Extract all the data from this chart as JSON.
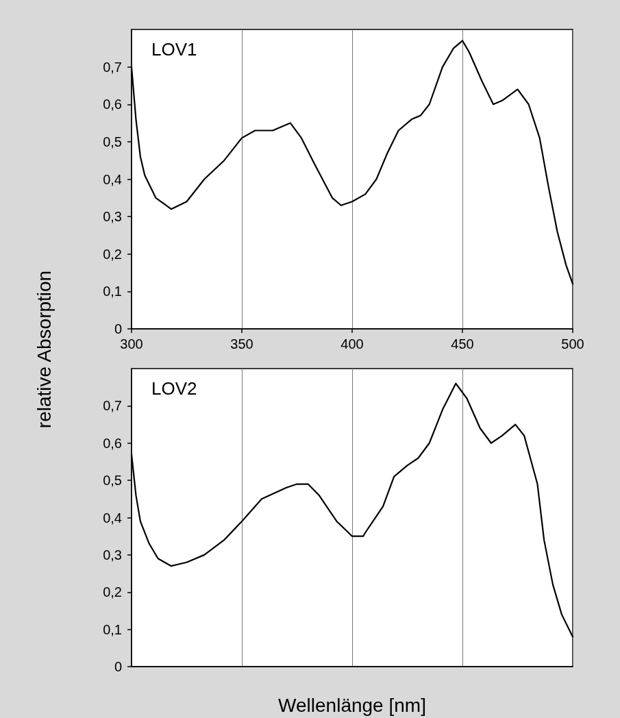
{
  "chart_data": [
    {
      "type": "line",
      "ylabel": "relative Absorption",
      "annotations": [
        "LOV1"
      ],
      "grid": "x",
      "xlim": [
        300,
        500
      ],
      "xticks": [
        300,
        350,
        400,
        450,
        500
      ],
      "ylim": [
        0,
        0.8
      ],
      "yticks": [
        0,
        {
          "value": 0.1,
          "label": "0,1"
        },
        {
          "value": 0.2,
          "label": "0,2"
        },
        {
          "value": 0.3,
          "label": "0,3"
        },
        {
          "value": 0.4,
          "label": "0,4"
        },
        {
          "value": 0.5,
          "label": "0,5"
        },
        {
          "value": 0.6,
          "label": "0,6"
        },
        {
          "value": 0.7,
          "label": "0,7"
        }
      ],
      "series": [
        {
          "color": "#000000",
          "x": [
            300,
            302,
            304,
            306,
            311,
            318,
            325,
            333,
            342,
            350,
            356,
            364,
            372,
            377,
            383,
            391,
            395,
            400,
            406,
            411,
            416,
            421,
            427,
            431,
            435,
            441,
            446,
            450,
            453,
            459,
            464,
            468,
            475,
            480,
            485,
            489,
            493,
            497,
            500
          ],
          "values": [
            0.7,
            0.56,
            0.46,
            0.41,
            0.35,
            0.32,
            0.34,
            0.4,
            0.45,
            0.51,
            0.53,
            0.53,
            0.55,
            0.51,
            0.44,
            0.35,
            0.33,
            0.34,
            0.36,
            0.4,
            0.47,
            0.53,
            0.56,
            0.57,
            0.6,
            0.7,
            0.75,
            0.77,
            0.74,
            0.66,
            0.6,
            0.61,
            0.64,
            0.6,
            0.51,
            0.38,
            0.26,
            0.17,
            0.12
          ]
        }
      ]
    },
    {
      "type": "line",
      "xlabel": "Wellenlänge [nm]",
      "annotations": [
        "LOV2"
      ],
      "grid": "x",
      "tick_labels": "y",
      "xlim": [
        300,
        500
      ],
      "xticks": [
        300,
        350,
        400,
        450,
        500
      ],
      "ylim": [
        0,
        0.8
      ],
      "yticks": [
        0,
        {
          "value": 0.1,
          "label": "0,1"
        },
        {
          "value": 0.2,
          "label": "0,2"
        },
        {
          "value": 0.3,
          "label": "0,3"
        },
        {
          "value": 0.4,
          "label": "0,4"
        },
        {
          "value": 0.5,
          "label": "0,5"
        },
        {
          "value": 0.6,
          "label": "0,6"
        },
        {
          "value": 0.7,
          "label": "0,7"
        }
      ],
      "series": [
        {
          "color": "#000000",
          "x": [
            300,
            302,
            304,
            308,
            312,
            318,
            325,
            333,
            342,
            350,
            359,
            370,
            375,
            380,
            385,
            393,
            400,
            405,
            406,
            414,
            419,
            425,
            430,
            435,
            441,
            447,
            452,
            458,
            463,
            468,
            474,
            478,
            484,
            487,
            491,
            495,
            500
          ],
          "values": [
            0.57,
            0.46,
            0.39,
            0.33,
            0.29,
            0.27,
            0.28,
            0.3,
            0.34,
            0.39,
            0.45,
            0.48,
            0.49,
            0.49,
            0.46,
            0.39,
            0.35,
            0.35,
            0.36,
            0.43,
            0.51,
            0.54,
            0.56,
            0.6,
            0.69,
            0.76,
            0.72,
            0.64,
            0.6,
            0.62,
            0.65,
            0.62,
            0.49,
            0.34,
            0.22,
            0.14,
            0.08
          ]
        }
      ]
    }
  ]
}
